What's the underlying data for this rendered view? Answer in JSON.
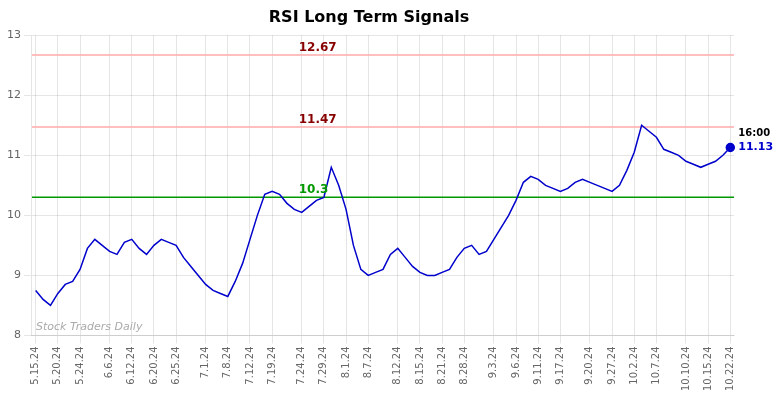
{
  "chart_data": {
    "type": "line",
    "title": "RSI Long Term Signals",
    "categories": [
      "5.15.24",
      null,
      null,
      "5.20.24",
      null,
      null,
      "5.24.24",
      null,
      null,
      null,
      "6.6.24",
      null,
      null,
      "6.12.24",
      null,
      null,
      "6.20.24",
      null,
      null,
      "6.25.24",
      null,
      null,
      null,
      "7.1.24",
      null,
      null,
      "7.8.24",
      null,
      null,
      "7.12.24",
      null,
      null,
      "7.19.24",
      null,
      null,
      null,
      "7.24.24",
      null,
      null,
      "7.29.24",
      null,
      null,
      "8.1.24",
      null,
      null,
      "8.7.24",
      null,
      null,
      null,
      "8.12.24",
      null,
      null,
      "8.15.24",
      null,
      null,
      "8.21.24",
      null,
      null,
      "8.28.24",
      null,
      null,
      null,
      "9.3.24",
      null,
      null,
      "9.6.24",
      null,
      null,
      "9.11.24",
      null,
      null,
      "9.17.24",
      null,
      null,
      null,
      "9.20.24",
      null,
      null,
      "9.27.24",
      null,
      null,
      "10.2.24",
      null,
      null,
      "10.7.24",
      null,
      null,
      null,
      "10.10.24",
      null,
      null,
      "10.15.24",
      null,
      null,
      "10.22.24"
    ],
    "values": [
      8.75,
      8.6,
      8.5,
      8.7,
      8.85,
      8.9,
      9.1,
      9.45,
      9.6,
      9.5,
      9.4,
      9.35,
      9.55,
      9.6,
      9.45,
      9.35,
      9.5,
      9.6,
      9.55,
      9.5,
      9.3,
      9.15,
      9.0,
      8.85,
      8.75,
      8.7,
      8.65,
      8.9,
      9.2,
      9.6,
      10.0,
      10.35,
      10.4,
      10.35,
      10.2,
      10.1,
      10.05,
      10.15,
      10.25,
      10.3,
      10.8,
      10.5,
      10.1,
      9.5,
      9.1,
      9.0,
      9.05,
      9.1,
      9.35,
      9.45,
      9.3,
      9.15,
      9.05,
      9.0,
      9.0,
      9.05,
      9.1,
      9.3,
      9.45,
      9.5,
      9.35,
      9.4,
      9.6,
      9.8,
      10.0,
      10.25,
      10.55,
      10.65,
      10.6,
      10.5,
      10.45,
      10.4,
      10.45,
      10.55,
      10.6,
      10.55,
      10.5,
      10.45,
      10.4,
      10.5,
      10.75,
      11.05,
      11.5,
      11.4,
      11.3,
      11.1,
      11.05,
      11.0,
      10.9,
      10.85,
      10.8,
      10.85,
      10.9,
      11.0,
      11.13
    ],
    "color": "#0000cc",
    "ylim": [
      8,
      13
    ],
    "yticks": [
      8,
      9,
      10,
      11,
      12,
      13
    ],
    "grid": true,
    "legend": false,
    "hlines": [
      {
        "value": 10.3,
        "label": "10.3",
        "color": "#009900",
        "label_color": "#009900"
      },
      {
        "value": 11.47,
        "label": "11.47",
        "color": "#ffaaaa",
        "label_color": "#880000"
      },
      {
        "value": 12.67,
        "label": "12.67",
        "color": "#ffaaaa",
        "label_color": "#880000"
      }
    ],
    "last_point_labels": [
      "16:00",
      "11.13"
    ],
    "watermark": "Stock Traders Daily"
  }
}
